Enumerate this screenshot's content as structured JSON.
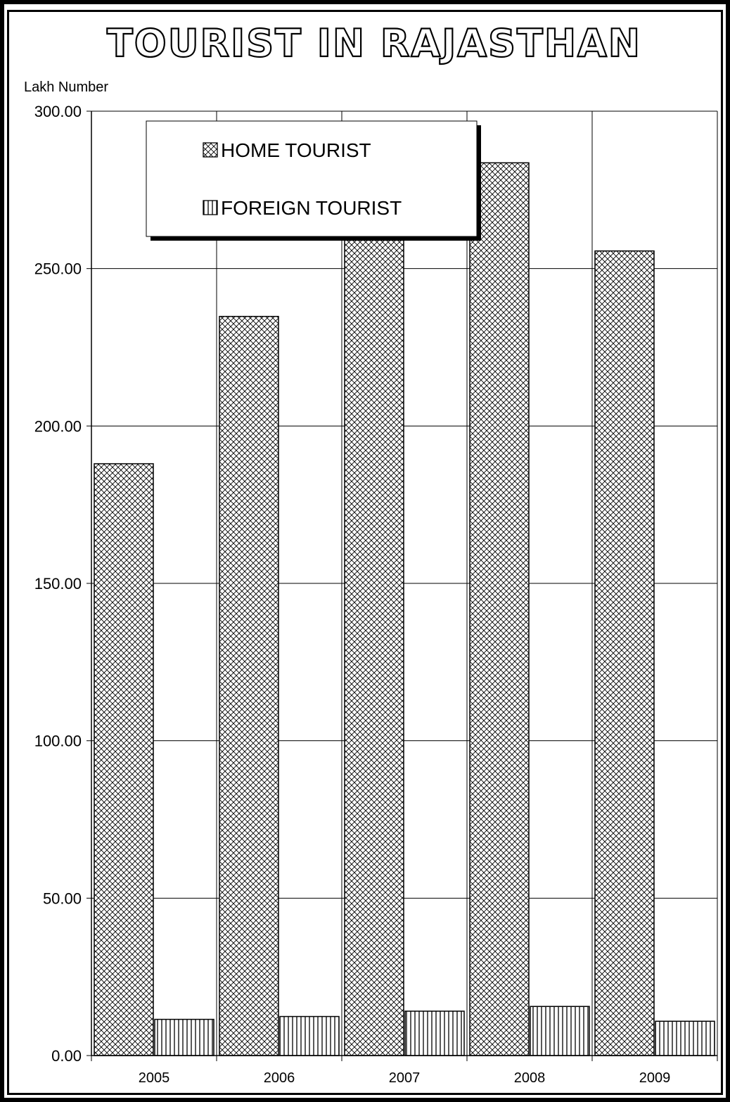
{
  "chart_data": {
    "type": "bar",
    "title": "TOURIST IN RAJASTHAN",
    "xlabel": "",
    "ylabel": "Lakh Number",
    "ylim": [
      0,
      300
    ],
    "yticks": [
      "0.00",
      "50.00",
      "100.00",
      "150.00",
      "200.00",
      "250.00",
      "300.00"
    ],
    "categories": [
      "2005",
      "2006",
      "2007",
      "2008",
      "2009"
    ],
    "series": [
      {
        "name": "HOME TOURIST",
        "values": [
          188.0,
          234.8,
          259.0,
          283.6,
          255.6
        ]
      },
      {
        "name": "FOREIGN TOURIST",
        "values": [
          11.5,
          12.4,
          14.1,
          15.6,
          10.9
        ]
      }
    ],
    "grid": true,
    "legend": "top-center"
  }
}
